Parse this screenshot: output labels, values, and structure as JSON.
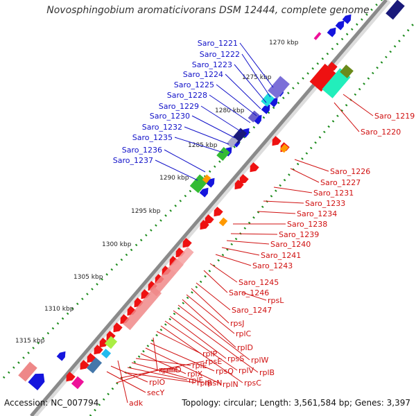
{
  "title": "Novosphingobium aromaticivorans DSM 12444, complete genome",
  "footer": {
    "accession": "Accession: NC_007794",
    "summary": "Topology: circular; Length: 3,561,584 bp; Genes: 3,397"
  },
  "ticks": [
    "1270 kbp",
    "1275 kbp",
    "1280 kbp",
    "1285 kbp",
    "1290 kbp",
    "1295 kbp",
    "1300 kbp",
    "1305 kbp",
    "1310 kbp",
    "1315 kbp"
  ],
  "colors": {
    "forward_label": "#1010c8",
    "reverse_label": "#d01010",
    "backbone": "#9a9a9a",
    "gc_dots": "#1a8a1a"
  },
  "forward_genes": [
    "Saro_1221",
    "Saro_1222",
    "Saro_1223",
    "Saro_1224",
    "Saro_1225",
    "Saro_1228",
    "Saro_1229",
    "Saro_1230",
    "Saro_1232",
    "Saro_1235",
    "Saro_1236",
    "Saro_1237"
  ],
  "reverse_genes": [
    "Saro_1219",
    "Saro_1220",
    "Saro_1226",
    "Saro_1227",
    "Saro_1231",
    "Saro_1233",
    "Saro_1234",
    "Saro_1238",
    "Saro_1239",
    "Saro_1240",
    "Saro_1241",
    "Saro_1243",
    "Saro_1245",
    "Saro_1246",
    "rpsL",
    "Saro_1247",
    "rpsJ",
    "rplC",
    "rplD",
    "rplW",
    "rplB",
    "rpsS",
    "rplV",
    "rpsC",
    "rplP",
    "rpmC",
    "rpsQ",
    "rplN",
    "rplX",
    "rplE",
    "rpsN",
    "rplF",
    "rplR",
    "rpsE",
    "rpmD",
    "rplO",
    "secY",
    "adk"
  ]
}
